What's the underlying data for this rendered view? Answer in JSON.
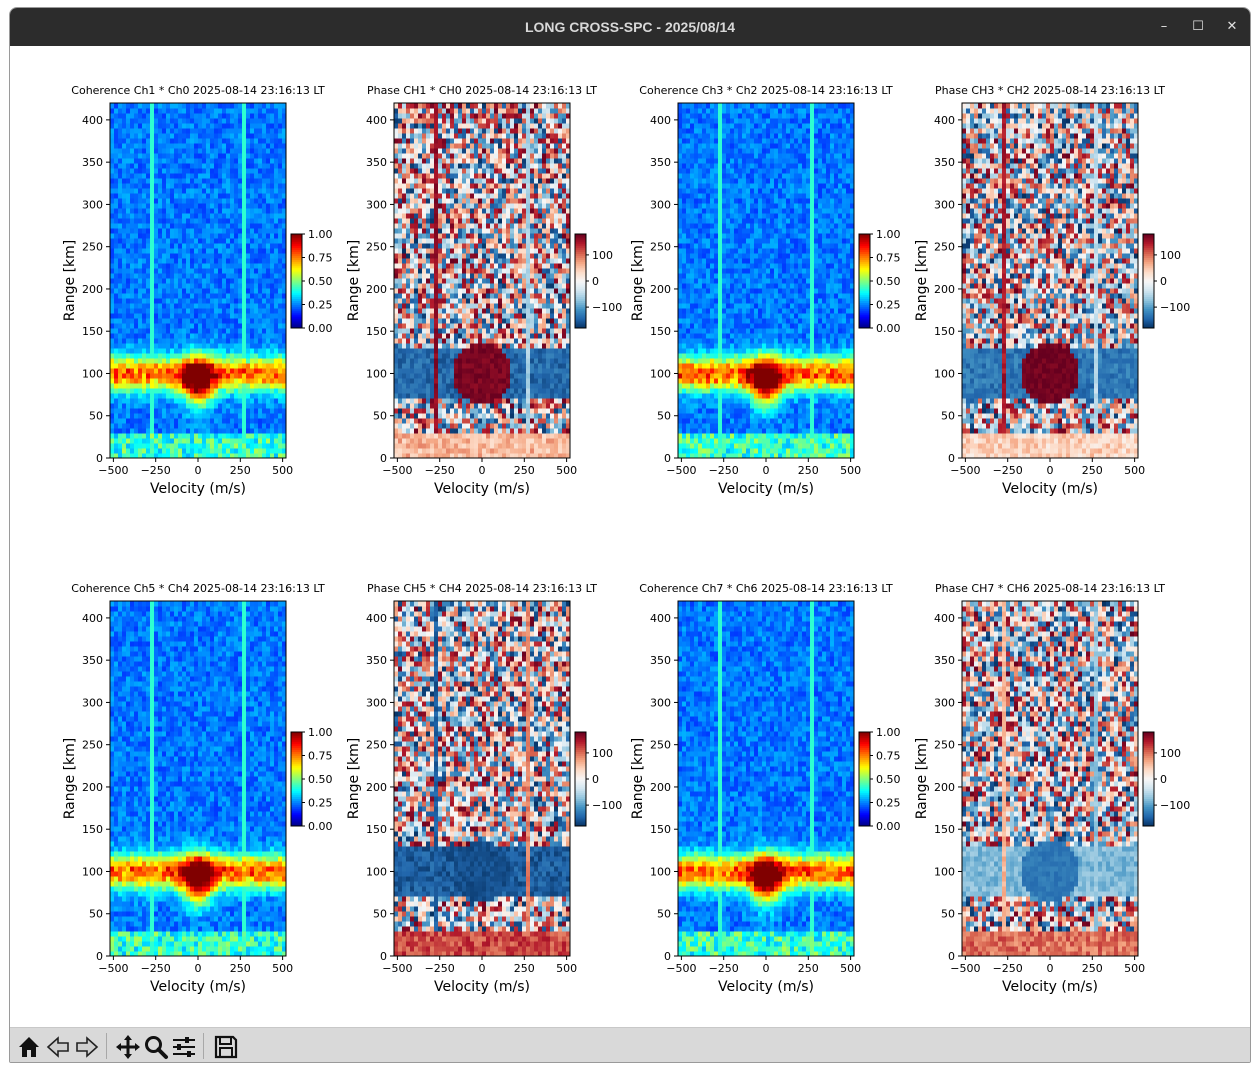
{
  "window": {
    "title": "LONG CROSS-SPC - 2025/08/14",
    "minimize_glyph": "–",
    "maximize_glyph": "☐",
    "close_glyph": "✕"
  },
  "toolbar": {
    "icons": [
      "home-icon",
      "back-arrow-icon",
      "forward-arrow-icon",
      "pan-icon",
      "zoom-icon",
      "subplots-config-icon",
      "save-icon"
    ]
  },
  "colormaps": {
    "coherence": "jet",
    "phase": "RdBu_r"
  },
  "chart_data": [
    {
      "type": "heatmap",
      "kind": "coherence",
      "title": "Coherence Ch1 * Ch0 2025-08-14 23:16:13 LT",
      "xlabel": "Velocity (m/s)",
      "ylabel": "Range [km]",
      "xlim": [
        -520,
        520
      ],
      "ylim": [
        0,
        420
      ],
      "xticks": [
        -500,
        -250,
        0,
        250,
        500
      ],
      "yticks": [
        0,
        50,
        100,
        150,
        200,
        250,
        300,
        350,
        400
      ],
      "colorbar": {
        "min": 0,
        "max": 1,
        "ticks": [
          "0.00",
          "0.25",
          "0.50",
          "0.75",
          "1.00"
        ]
      },
      "features": {
        "lines": [
          -270,
          270
        ],
        "band_center": 100,
        "band_halfwidth": 20,
        "core_center": 0,
        "core_width": 90
      }
    },
    {
      "type": "heatmap",
      "kind": "phase",
      "title": "Phase CH1 * CH0 2025-08-14 23:16:13 LT",
      "xlabel": "Velocity (m/s)",
      "ylabel": "Range [km]",
      "xlim": [
        -520,
        520
      ],
      "ylim": [
        0,
        420
      ],
      "xticks": [
        -500,
        -250,
        0,
        250,
        500
      ],
      "yticks": [
        0,
        50,
        100,
        150,
        200,
        250,
        300,
        350,
        400
      ],
      "colorbar": {
        "min": -180,
        "max": 180,
        "ticks": [
          "−100",
          "0",
          "100"
        ],
        "tick_values": [
          -100,
          0,
          100
        ]
      },
      "features": {
        "lines": [
          -270,
          270
        ],
        "line_phase": [
          160,
          -60
        ],
        "band_phase": -140,
        "core_phase": 170,
        "low_phase": 60
      }
    },
    {
      "type": "heatmap",
      "kind": "coherence",
      "title": "Coherence Ch3 * Ch2 2025-08-14 23:16:13 LT",
      "xlabel": "Velocity (m/s)",
      "ylabel": "Range [km]",
      "xlim": [
        -520,
        520
      ],
      "ylim": [
        0,
        420
      ],
      "xticks": [
        -500,
        -250,
        0,
        250,
        500
      ],
      "yticks": [
        0,
        50,
        100,
        150,
        200,
        250,
        300,
        350,
        400
      ],
      "colorbar": {
        "min": 0,
        "max": 1,
        "ticks": [
          "0.00",
          "0.25",
          "0.50",
          "0.75",
          "1.00"
        ]
      },
      "features": {
        "lines": [
          -270,
          270
        ],
        "band_center": 100,
        "band_halfwidth": 20,
        "core_center": 0,
        "core_width": 90
      }
    },
    {
      "type": "heatmap",
      "kind": "phase",
      "title": "Phase CH3 * CH2 2025-08-14 23:16:13 LT",
      "xlabel": "Velocity (m/s)",
      "ylabel": "Range [km]",
      "xlim": [
        -520,
        520
      ],
      "ylim": [
        0,
        420
      ],
      "xticks": [
        -500,
        -250,
        0,
        250,
        500
      ],
      "yticks": [
        0,
        50,
        100,
        150,
        200,
        250,
        300,
        350,
        400
      ],
      "colorbar": {
        "min": -180,
        "max": 180,
        "ticks": [
          "−100",
          "0",
          "100"
        ],
        "tick_values": [
          -100,
          0,
          100
        ]
      },
      "features": {
        "lines": [
          -270,
          270
        ],
        "line_phase": [
          150,
          -50
        ],
        "band_phase": -130,
        "core_phase": 175,
        "low_phase": 40
      }
    },
    {
      "type": "heatmap",
      "kind": "coherence",
      "title": "Coherence Ch5 * Ch4 2025-08-14 23:16:13 LT",
      "xlabel": "Velocity (m/s)",
      "ylabel": "Range [km]",
      "xlim": [
        -520,
        520
      ],
      "ylim": [
        0,
        420
      ],
      "xticks": [
        -500,
        -250,
        0,
        250,
        500
      ],
      "yticks": [
        0,
        50,
        100,
        150,
        200,
        250,
        300,
        350,
        400
      ],
      "colorbar": {
        "min": 0,
        "max": 1,
        "ticks": [
          "0.00",
          "0.25",
          "0.50",
          "0.75",
          "1.00"
        ]
      },
      "features": {
        "lines": [
          -270,
          270
        ],
        "band_center": 100,
        "band_halfwidth": 20,
        "core_center": 0,
        "core_width": 90
      }
    },
    {
      "type": "heatmap",
      "kind": "phase",
      "title": "Phase CH5 * CH4 2025-08-14 23:16:13 LT",
      "xlabel": "Velocity (m/s)",
      "ylabel": "Range [km]",
      "xlim": [
        -520,
        520
      ],
      "ylim": [
        0,
        420
      ],
      "xticks": [
        -500,
        -250,
        0,
        250,
        500
      ],
      "yticks": [
        0,
        50,
        100,
        150,
        200,
        250,
        300,
        350,
        400
      ],
      "colorbar": {
        "min": -180,
        "max": 180,
        "ticks": [
          "−100",
          "0",
          "100"
        ],
        "tick_values": [
          -100,
          0,
          100
        ]
      },
      "features": {
        "lines": [
          -270,
          270
        ],
        "line_phase": [
          -150,
          90
        ],
        "band_phase": -150,
        "core_phase": -160,
        "low_phase": 120
      }
    },
    {
      "type": "heatmap",
      "kind": "coherence",
      "title": "Coherence Ch7 * Ch6 2025-08-14 23:16:13 LT",
      "xlabel": "Velocity (m/s)",
      "ylabel": "Range [km]",
      "xlim": [
        -520,
        520
      ],
      "ylim": [
        0,
        420
      ],
      "xticks": [
        -500,
        -250,
        0,
        250,
        500
      ],
      "yticks": [
        0,
        50,
        100,
        150,
        200,
        250,
        300,
        350,
        400
      ],
      "colorbar": {
        "min": 0,
        "max": 1,
        "ticks": [
          "0.00",
          "0.25",
          "0.50",
          "0.75",
          "1.00"
        ]
      },
      "features": {
        "lines": [
          -270,
          270
        ],
        "band_center": 100,
        "band_halfwidth": 20,
        "core_center": 0,
        "core_width": 90
      }
    },
    {
      "type": "heatmap",
      "kind": "phase",
      "title": "Phase CH7 * CH6 2025-08-14 23:16:13 LT",
      "xlabel": "Velocity (m/s)",
      "ylabel": "Range [km]",
      "xlim": [
        -520,
        520
      ],
      "ylim": [
        0,
        420
      ],
      "xticks": [
        -500,
        -250,
        0,
        250,
        500
      ],
      "yticks": [
        0,
        50,
        100,
        150,
        200,
        250,
        300,
        350,
        400
      ],
      "colorbar": {
        "min": -180,
        "max": 180,
        "ticks": [
          "−100",
          "0",
          "100"
        ],
        "tick_values": [
          -100,
          0,
          100
        ]
      },
      "features": {
        "lines": [
          -270,
          270
        ],
        "line_phase": [
          60,
          -70
        ],
        "band_phase": -80,
        "core_phase": -130,
        "low_phase": 100
      }
    }
  ]
}
